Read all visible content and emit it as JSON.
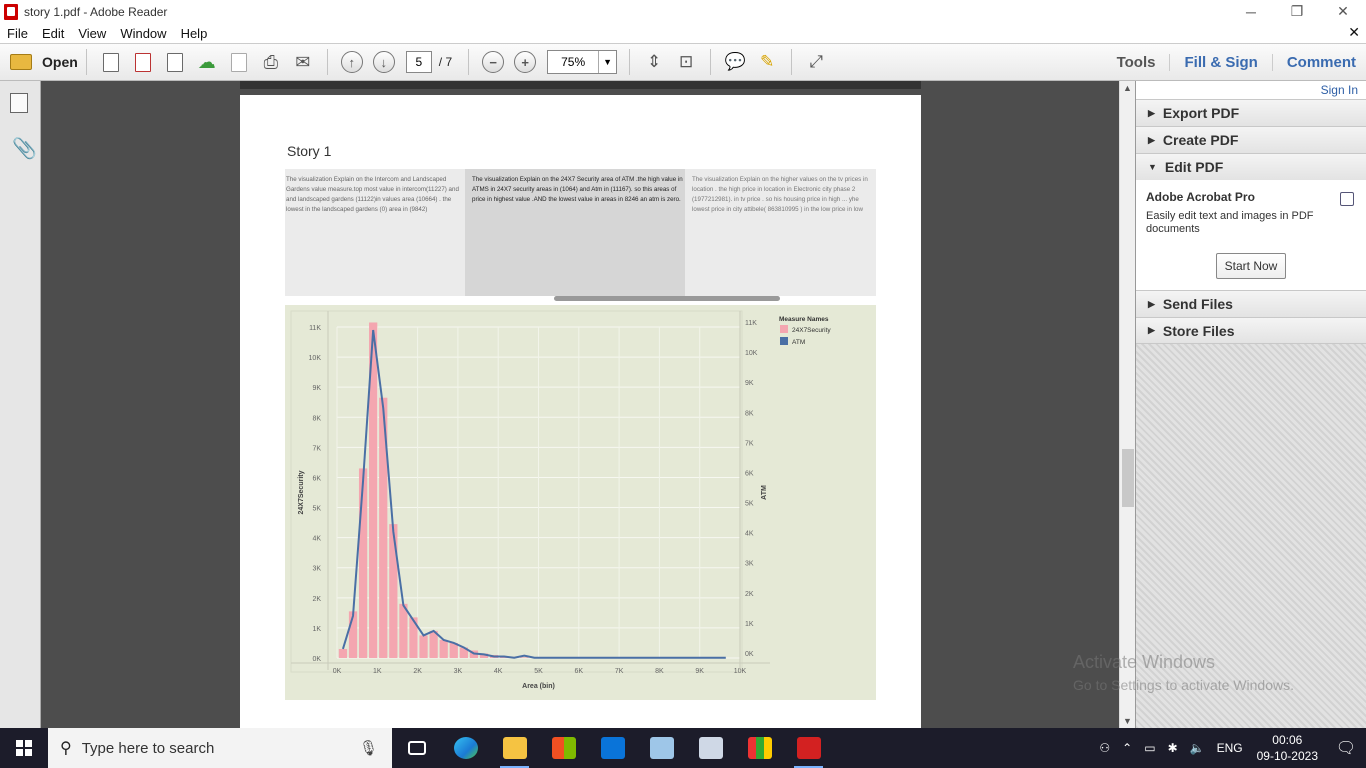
{
  "window": {
    "title": "story 1.pdf - Adobe Reader",
    "minimize": "─",
    "restore": "❐",
    "close": "✕"
  },
  "menu": {
    "items": [
      "File",
      "Edit",
      "View",
      "Window",
      "Help"
    ],
    "close_doc": "✕"
  },
  "toolbar": {
    "open_label": "Open",
    "page_current": "5",
    "page_total": "/ 7",
    "zoom": "75%",
    "tools_label": "Tools",
    "fill_sign_label": "Fill & Sign",
    "comment_label": "Comment"
  },
  "document": {
    "story_title": "Story 1",
    "story_points": [
      "The visualization Explain on the Intercom and Landscaped Gardens value measure.top most value in intercom(11227) and and landscaped gardens (11122)in values area (10664) . the lowest in the landscaped gardens (0) area in (9842)",
      "The visualization Explain on the 24X7 Security area of ATM .the high value in ATMS in 24X7 security areas in (1064) and Atm in (11167). so this areas of price in highest value .AND the lowest value in areas in 8246 an atm is zero.",
      "The visualization Explain on the higher values on the tv prices in location . the high price in location in Electronic city phase 2 (1977212981). in tv price . so his housing price in high ... yhe lowest price in city attibele( 863810995 ) in the low price in low"
    ]
  },
  "chart_data": {
    "type": "bar",
    "xlabel": "Area (bin)",
    "ylabel_left": "24X7Security",
    "ylabel_right": "ATM",
    "legend_title": "Measure Names",
    "legend_placement": "top-right",
    "x_ticks": [
      "0K",
      "1K",
      "2K",
      "3K",
      "4K",
      "5K",
      "6K",
      "7K",
      "8K",
      "9K",
      "10K"
    ],
    "y_ticks": [
      "0K",
      "1K",
      "2K",
      "3K",
      "4K",
      "5K",
      "6K",
      "7K",
      "8K",
      "9K",
      "10K",
      "11K"
    ],
    "xlim": [
      0,
      10000
    ],
    "ylim": [
      0,
      11000
    ],
    "grid": true,
    "x": [
      250,
      500,
      750,
      1000,
      1250,
      1500,
      1750,
      2000,
      2250,
      2500,
      2750,
      3000,
      3250,
      3500,
      3750,
      4000,
      4250,
      4500,
      4750,
      5000
    ],
    "series": [
      {
        "name": "24X7Security",
        "kind": "bar",
        "color": "#f4a6b0",
        "values": [
          300,
          1550,
          6300,
          11150,
          8650,
          4450,
          1800,
          1350,
          750,
          900,
          600,
          500,
          350,
          250,
          150,
          100,
          60,
          40,
          20,
          10
        ]
      },
      {
        "name": "ATM",
        "kind": "line",
        "color": "#4a6fa5",
        "values": [
          300,
          1400,
          5900,
          10900,
          8300,
          4200,
          1750,
          1250,
          750,
          900,
          600,
          500,
          350,
          150,
          120,
          50,
          50,
          10,
          80,
          10
        ]
      }
    ]
  },
  "right_panel": {
    "signin": "Sign In",
    "export_pdf": "Export PDF",
    "create_pdf": "Create PDF",
    "edit_pdf": "Edit PDF",
    "product": "Adobe Acrobat Pro",
    "description": "Easily edit text and images in PDF documents",
    "start_now": "Start Now",
    "send_files": "Send Files",
    "store_files": "Store Files"
  },
  "watermark": {
    "line1": "Activate Windows",
    "line2": "Go to Settings to activate Windows."
  },
  "taskbar": {
    "search_placeholder": "Type here to search",
    "lang": "ENG",
    "time": "00:06",
    "date": "09-10-2023"
  }
}
